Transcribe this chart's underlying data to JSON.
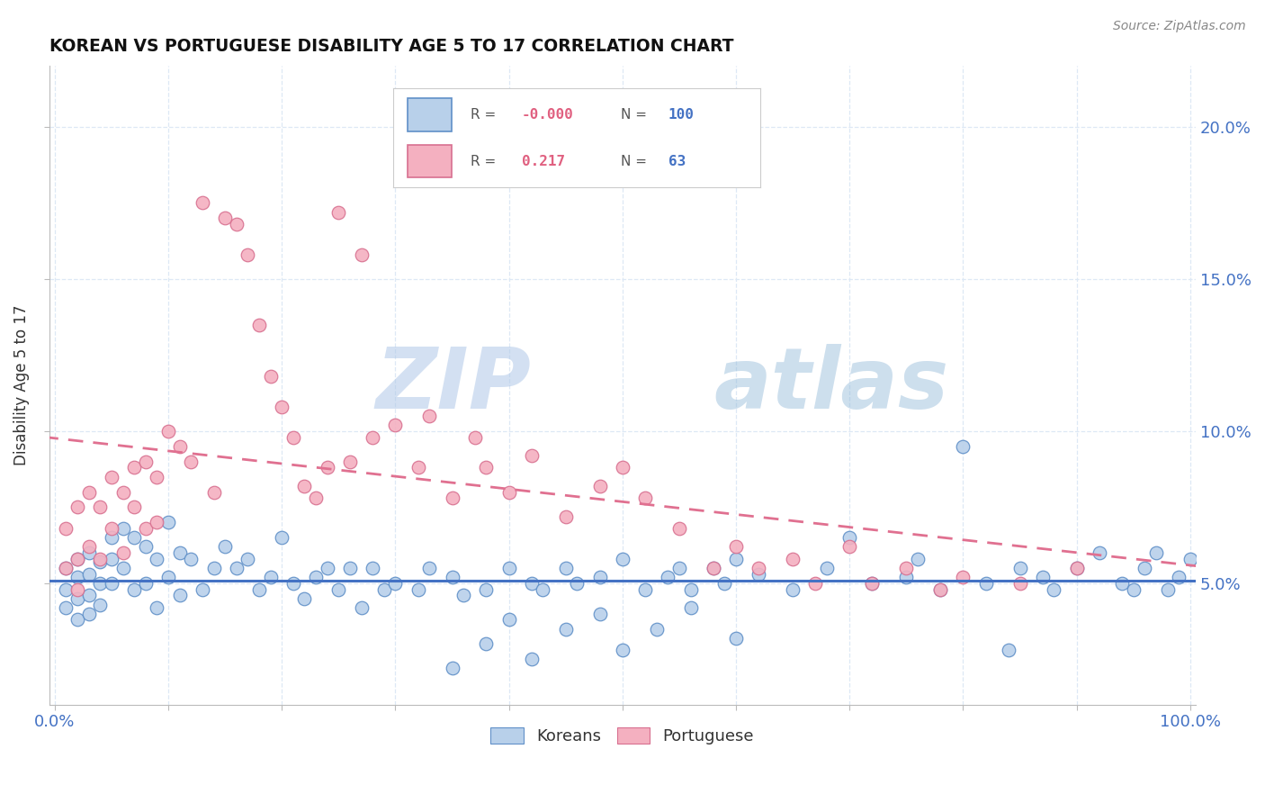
{
  "title": "KOREAN VS PORTUGUESE DISABILITY AGE 5 TO 17 CORRELATION CHART",
  "source_text": "Source: ZipAtlas.com",
  "ylabel": "Disability Age 5 to 17",
  "watermark_top": "ZIP",
  "watermark_bot": "atlas",
  "xlim": [
    -0.005,
    1.005
  ],
  "ylim": [
    0.01,
    0.22
  ],
  "yticks": [
    0.05,
    0.1,
    0.15,
    0.2
  ],
  "yticklabels": [
    "5.0%",
    "10.0%",
    "15.0%",
    "20.0%"
  ],
  "xtick_positions": [
    0.0,
    0.1,
    0.2,
    0.3,
    0.4,
    0.5,
    0.6,
    0.7,
    0.8,
    0.9,
    1.0
  ],
  "xticklabels_show": [
    "0.0%",
    "",
    "",
    "",
    "",
    "",
    "",
    "",
    "",
    "",
    "100.0%"
  ],
  "korean_dot_color": "#b8d0ea",
  "korean_edge_color": "#6090c8",
  "portuguese_dot_color": "#f4b0c0",
  "portuguese_edge_color": "#d87090",
  "korean_line_color": "#4472c4",
  "portuguese_line_color": "#e07090",
  "text_blue": "#4472c4",
  "text_pink": "#e06080",
  "grid_color": "#dde8f5",
  "background": "#ffffff",
  "legend_r_korean": "-0.000",
  "legend_n_korean": "100",
  "legend_r_portuguese": "0.217",
  "legend_n_portuguese": "63",
  "legend_label_korean": "Koreans",
  "legend_label_portuguese": "Portuguese",
  "korean_x": [
    0.01,
    0.01,
    0.01,
    0.02,
    0.02,
    0.02,
    0.02,
    0.03,
    0.03,
    0.03,
    0.03,
    0.04,
    0.04,
    0.04,
    0.05,
    0.05,
    0.05,
    0.06,
    0.06,
    0.07,
    0.07,
    0.08,
    0.08,
    0.09,
    0.09,
    0.1,
    0.1,
    0.11,
    0.11,
    0.12,
    0.13,
    0.14,
    0.15,
    0.16,
    0.17,
    0.18,
    0.19,
    0.2,
    0.21,
    0.22,
    0.23,
    0.24,
    0.25,
    0.26,
    0.27,
    0.28,
    0.29,
    0.3,
    0.32,
    0.33,
    0.35,
    0.36,
    0.38,
    0.4,
    0.42,
    0.43,
    0.45,
    0.46,
    0.48,
    0.5,
    0.52,
    0.54,
    0.55,
    0.56,
    0.58,
    0.59,
    0.6,
    0.62,
    0.65,
    0.68,
    0.7,
    0.72,
    0.75,
    0.76,
    0.78,
    0.8,
    0.82,
    0.84,
    0.85,
    0.87,
    0.88,
    0.9,
    0.92,
    0.94,
    0.95,
    0.96,
    0.97,
    0.98,
    0.99,
    1.0,
    0.35,
    0.38,
    0.4,
    0.42,
    0.45,
    0.48,
    0.5,
    0.53,
    0.56,
    0.6
  ],
  "korean_y": [
    0.055,
    0.048,
    0.042,
    0.058,
    0.052,
    0.045,
    0.038,
    0.06,
    0.053,
    0.046,
    0.04,
    0.057,
    0.05,
    0.043,
    0.065,
    0.058,
    0.05,
    0.068,
    0.055,
    0.065,
    0.048,
    0.062,
    0.05,
    0.058,
    0.042,
    0.07,
    0.052,
    0.06,
    0.046,
    0.058,
    0.048,
    0.055,
    0.062,
    0.055,
    0.058,
    0.048,
    0.052,
    0.065,
    0.05,
    0.045,
    0.052,
    0.055,
    0.048,
    0.055,
    0.042,
    0.055,
    0.048,
    0.05,
    0.048,
    0.055,
    0.052,
    0.046,
    0.048,
    0.055,
    0.05,
    0.048,
    0.055,
    0.05,
    0.052,
    0.058,
    0.048,
    0.052,
    0.055,
    0.048,
    0.055,
    0.05,
    0.058,
    0.053,
    0.048,
    0.055,
    0.065,
    0.05,
    0.052,
    0.058,
    0.048,
    0.095,
    0.05,
    0.028,
    0.055,
    0.052,
    0.048,
    0.055,
    0.06,
    0.05,
    0.048,
    0.055,
    0.06,
    0.048,
    0.052,
    0.058,
    0.022,
    0.03,
    0.038,
    0.025,
    0.035,
    0.04,
    0.028,
    0.035,
    0.042,
    0.032
  ],
  "portuguese_x": [
    0.01,
    0.01,
    0.02,
    0.02,
    0.02,
    0.03,
    0.03,
    0.04,
    0.04,
    0.05,
    0.05,
    0.06,
    0.06,
    0.07,
    0.07,
    0.08,
    0.08,
    0.09,
    0.09,
    0.1,
    0.11,
    0.12,
    0.13,
    0.14,
    0.15,
    0.16,
    0.17,
    0.18,
    0.19,
    0.2,
    0.21,
    0.22,
    0.23,
    0.24,
    0.25,
    0.26,
    0.27,
    0.28,
    0.3,
    0.32,
    0.33,
    0.35,
    0.37,
    0.38,
    0.4,
    0.42,
    0.45,
    0.48,
    0.5,
    0.52,
    0.55,
    0.58,
    0.6,
    0.62,
    0.65,
    0.67,
    0.7,
    0.72,
    0.75,
    0.78,
    0.8,
    0.85,
    0.9
  ],
  "portuguese_y": [
    0.068,
    0.055,
    0.075,
    0.058,
    0.048,
    0.08,
    0.062,
    0.075,
    0.058,
    0.085,
    0.068,
    0.08,
    0.06,
    0.075,
    0.088,
    0.09,
    0.068,
    0.085,
    0.07,
    0.1,
    0.095,
    0.09,
    0.175,
    0.08,
    0.17,
    0.168,
    0.158,
    0.135,
    0.118,
    0.108,
    0.098,
    0.082,
    0.078,
    0.088,
    0.172,
    0.09,
    0.158,
    0.098,
    0.102,
    0.088,
    0.105,
    0.078,
    0.098,
    0.088,
    0.08,
    0.092,
    0.072,
    0.082,
    0.088,
    0.078,
    0.068,
    0.055,
    0.062,
    0.055,
    0.058,
    0.05,
    0.062,
    0.05,
    0.055,
    0.048,
    0.052,
    0.05,
    0.055
  ]
}
